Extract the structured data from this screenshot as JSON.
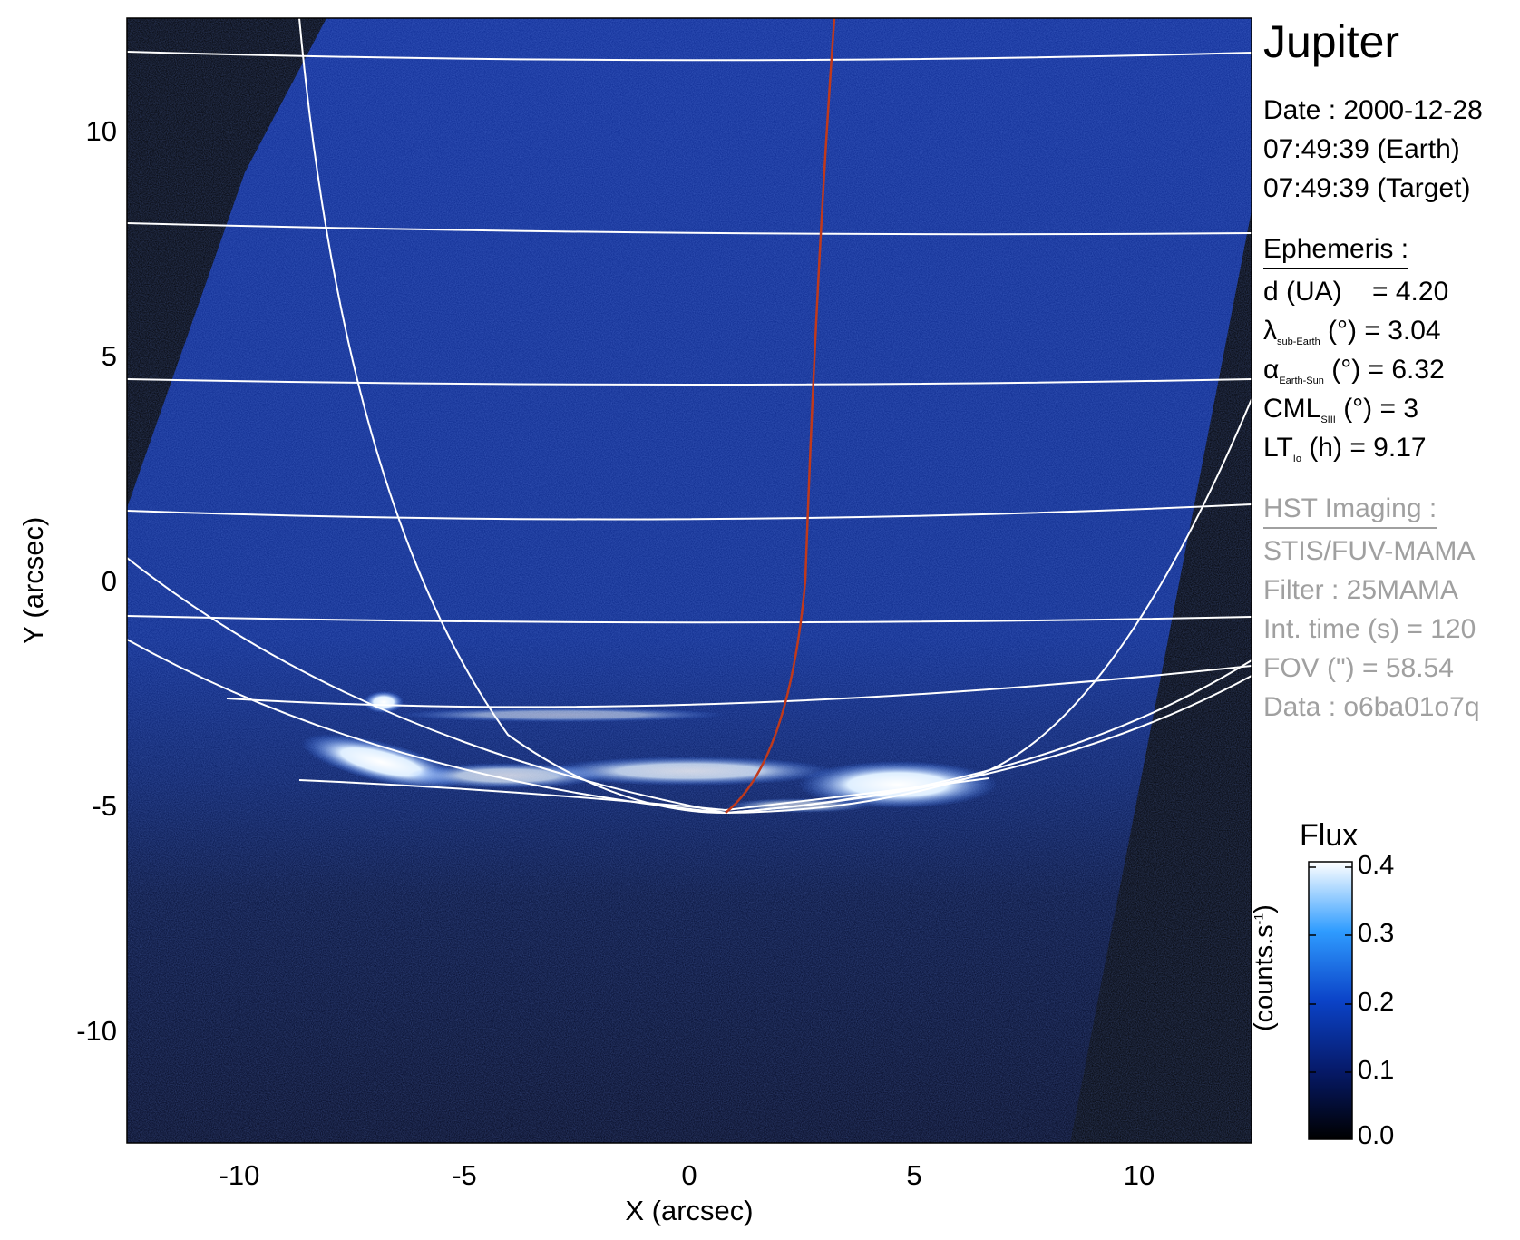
{
  "plot": {
    "x_label": "X (arcsec)",
    "y_label": "Y (arcsec)",
    "x_ticks": [
      "-10",
      "-5",
      "0",
      "5",
      "10"
    ],
    "y_ticks": [
      "10",
      "5",
      "0",
      "-5",
      "-10"
    ],
    "x_range": [
      -12.5,
      12.5
    ],
    "y_range": [
      -12.5,
      12.5
    ],
    "colors": {
      "background": "#000000",
      "image": "#0b2a8c",
      "grid": "#ffffff",
      "meridian": "#c0391b"
    }
  },
  "info": {
    "title": "Jupiter",
    "date_line": "Date : 2000-12-28",
    "time_earth": "07:49:39 (Earth)",
    "time_target": "07:49:39 (Target)",
    "ephemeris_header": "Ephemeris :",
    "distance": "d (UA)    = 4.20",
    "lambda_symbol": "λ",
    "lambda_sub": "sub-Earth",
    "lambda_rest": " (°) = 3.04",
    "alpha_symbol": "α",
    "alpha_sub": "Earth-Sun",
    "alpha_rest": " (°) = 6.32",
    "cml_main": "CML",
    "cml_sub": "SIII",
    "cml_rest": " (°) = 3",
    "lt_main": "LT",
    "lt_sub": "Io",
    "lt_rest": " (h) = 9.17",
    "hst_header": "HST Imaging :",
    "instrument": "STIS/FUV-MAMA",
    "filter": "Filter : 25MAMA",
    "int_time": "Int. time (s) = 120",
    "fov": "FOV (\") = 58.54",
    "data_id": "Data : o6ba01o7q"
  },
  "colorbar": {
    "title": "Flux",
    "units_main": "(counts.s",
    "units_sup": "-1",
    "units_close": ")",
    "ticks": [
      "0.4",
      "0.3",
      "0.2",
      "0.1",
      "0.0"
    ]
  }
}
